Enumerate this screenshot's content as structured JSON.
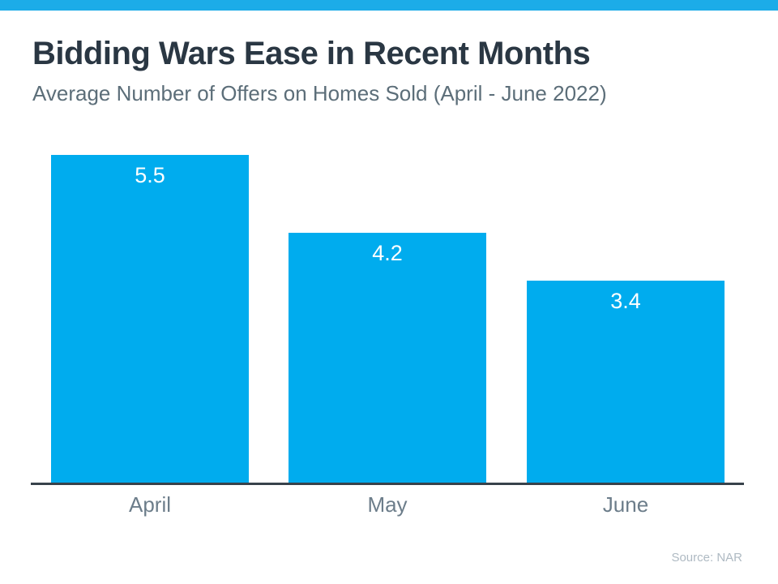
{
  "page": {
    "title": "Bidding Wars Ease in Recent Months",
    "subtitle": "Average Number of Offers on Homes Sold (April - June 2022)",
    "source": "Source: NAR"
  },
  "colors": {
    "top_strip": "#1cace8",
    "bar": "#00acee",
    "title_text": "#2a3743",
    "subtitle_text": "#5c6e79",
    "axis_line": "#38424b",
    "category_text": "#6c7d8a",
    "value_label_text": "#ffffff",
    "source_text": "#afbac3"
  },
  "chart_data": {
    "type": "bar",
    "categories": [
      "April",
      "May",
      "June"
    ],
    "values": [
      5.5,
      4.2,
      3.4
    ],
    "value_labels": [
      "5.5",
      "4.2",
      "3.4"
    ],
    "title": "Bidding Wars Ease in Recent Months",
    "subtitle": "Average Number of Offers on Homes Sold (April - June 2022)",
    "xlabel": "",
    "ylabel": "",
    "ylim": [
      0,
      5.5
    ],
    "grid": false,
    "legend": false,
    "bar_color": "#00acee",
    "value_label_position": "inside-top",
    "value_label_color": "#ffffff",
    "source": "Source: NAR"
  }
}
